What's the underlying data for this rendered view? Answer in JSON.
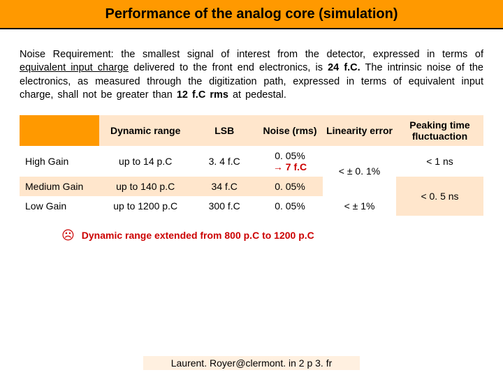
{
  "title": "Performance of the analog core (simulation)",
  "paragraph": {
    "lead": "Noise Requirement:",
    "p1": " the smallest signal of interest from the detector, expressed in terms of ",
    "u1": "equivalent input charge",
    "p2": " delivered to the front end electronics, is ",
    "b1": "24 f.C.",
    "p3": " The intrinsic noise of the electronics, as measured through the digitization path, expressed in terms of equivalent input charge, shall not be greater than ",
    "b2": "12 f.C rms",
    "p4": " at pedestal."
  },
  "table": {
    "headers": [
      "",
      "Dynamic range",
      "LSB",
      "Noise (rms)",
      "Linearity error",
      "Peaking time fluctuaction"
    ],
    "rows": [
      {
        "label": "High Gain",
        "dynamic": "up to 14 p.C",
        "lsb": "3. 4 f.C",
        "noise_top": "0. 05%",
        "noise_bot": "7 f.C",
        "linearity": "< ± 0. 1%",
        "peaking": "< 1 ns"
      },
      {
        "label": "Medium Gain",
        "dynamic": "up to 140 p.C",
        "lsb": "34 f.C",
        "noise": "0. 05%",
        "linearity": "",
        "peaking": ""
      },
      {
        "label": "Low Gain",
        "dynamic": "up to 1200 p.C",
        "lsb": "300 f.C",
        "noise": "0. 05%",
        "linearity": "< ± 1%",
        "peaking": "< 0. 5 ns"
      }
    ]
  },
  "note": {
    "icon": "☹",
    "text": "Dynamic range extended from 800 p.C to 1200 p.C"
  },
  "footer": "Laurent. Royer@clermont. in 2 p 3. fr"
}
